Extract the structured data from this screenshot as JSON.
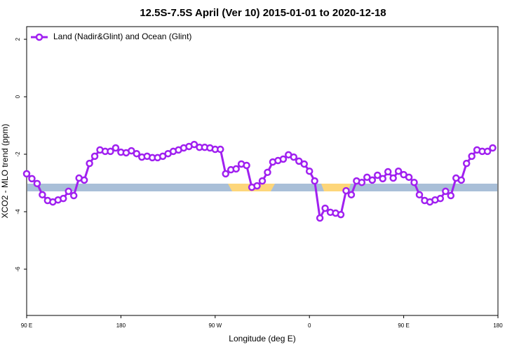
{
  "chart_data": {
    "type": "line",
    "title": "12.5S-7.5S April (Ver 10)   2015-01-01 to 2020-12-18",
    "x_label": "Longitude (deg E)",
    "y_label": "XCO2 - MLO trend (ppm)",
    "x": [
      90,
      95,
      100,
      105,
      110,
      115,
      120,
      125,
      130,
      135,
      140,
      145,
      150,
      155,
      160,
      165,
      170,
      175,
      180,
      185,
      190,
      195,
      200,
      205,
      210,
      215,
      220,
      225,
      230,
      235,
      240,
      245,
      250,
      255,
      260,
      265,
      270,
      275,
      280,
      285,
      290,
      295,
      300,
      305,
      310,
      315,
      320,
      325,
      330,
      335,
      340,
      345,
      350,
      355,
      360,
      365,
      370,
      375,
      380,
      385,
      390,
      395,
      400,
      405,
      410,
      415,
      420,
      425,
      430,
      435,
      440,
      445,
      450,
      455,
      460,
      465,
      470,
      475,
      480,
      485,
      490,
      495,
      500,
      505,
      510,
      515,
      520,
      525,
      530,
      535
    ],
    "series": [
      {
        "name": "Land (Nadir&Glint) and Ocean (Glint)",
        "color": "#a020f0",
        "values": [
          -2.68,
          -2.85,
          -3.02,
          -3.41,
          -3.61,
          -3.66,
          -3.59,
          -3.54,
          -3.29,
          -3.44,
          -2.83,
          -2.9,
          -2.32,
          -2.07,
          -1.85,
          -1.9,
          -1.9,
          -1.78,
          -1.93,
          -1.95,
          -1.88,
          -1.98,
          -2.1,
          -2.07,
          -2.12,
          -2.12,
          -2.07,
          -1.98,
          -1.9,
          -1.85,
          -1.78,
          -1.73,
          -1.66,
          -1.76,
          -1.76,
          -1.78,
          -1.83,
          -1.83,
          -2.68,
          -2.54,
          -2.51,
          -2.34,
          -2.39,
          -3.15,
          -3.1,
          -2.93,
          -2.63,
          -2.27,
          -2.22,
          -2.17,
          -2.02,
          -2.1,
          -2.24,
          -2.34,
          -2.59,
          -2.93,
          -4.22,
          -3.88,
          -4.02,
          -4.05,
          -4.1,
          -3.27,
          -3.41,
          -2.93,
          -2.98,
          -2.8,
          -2.9,
          -2.73,
          -2.85,
          -2.61,
          -2.83,
          -2.59,
          -2.71,
          -2.8,
          -2.98,
          -3.41,
          -3.61,
          -3.66,
          -3.59,
          -3.54,
          -3.29,
          -3.44,
          -2.83,
          -2.9,
          -2.32,
          -2.07,
          -1.85,
          -1.9,
          -1.9,
          -1.78
        ]
      }
    ],
    "xlim": [
      90,
      540
    ],
    "xticks": [
      {
        "value": 90,
        "label": "90 E"
      },
      180,
      {
        "value": 270,
        "label": "90 W"
      },
      0,
      {
        "value": 450,
        "label": "90 E"
      },
      {
        "value": 540,
        "label": "180"
      }
    ],
    "ylim": [
      -7.61,
      2.44
    ],
    "yticks": [
      2,
      0,
      -2,
      -4,
      -6
    ],
    "legend": "top-left"
  }
}
